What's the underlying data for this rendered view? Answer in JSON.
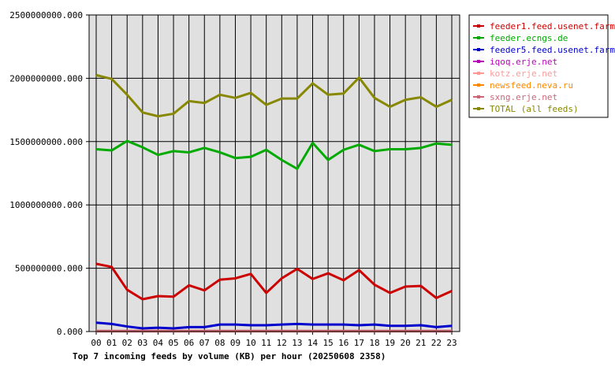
{
  "chart_data": {
    "type": "line",
    "title": "Top 7 incoming feeds by volume (KB) per hour (20250608 2358)",
    "xlabel": "",
    "ylabel": "",
    "ylim": [
      0,
      2500000000
    ],
    "y_ticks": [
      "0.000",
      "500000000.000",
      "1000000000.000",
      "1500000000.000",
      "2000000000.000",
      "2500000000.000"
    ],
    "y_tick_values": [
      0,
      500000000,
      1000000000,
      1500000000,
      2000000000,
      2500000000
    ],
    "categories": [
      "00",
      "01",
      "02",
      "03",
      "04",
      "05",
      "06",
      "07",
      "08",
      "09",
      "10",
      "11",
      "12",
      "13",
      "14",
      "15",
      "16",
      "17",
      "18",
      "19",
      "20",
      "21",
      "22",
      "23"
    ],
    "grid": true,
    "legend_position": "top-right",
    "series": [
      {
        "name": "feeder1.feed.usenet.farm",
        "color": "#cc0000",
        "values": [
          535000000,
          510000000,
          330000000,
          255000000,
          280000000,
          275000000,
          365000000,
          325000000,
          410000000,
          420000000,
          455000000,
          305000000,
          420000000,
          495000000,
          415000000,
          460000000,
          405000000,
          485000000,
          370000000,
          305000000,
          355000000,
          360000000,
          265000000,
          320000000
        ]
      },
      {
        "name": "feeder.ecngs.de",
        "color": "#00aa00",
        "values": [
          1440000000,
          1430000000,
          1505000000,
          1455000000,
          1395000000,
          1425000000,
          1415000000,
          1450000000,
          1415000000,
          1370000000,
          1380000000,
          1435000000,
          1355000000,
          1285000000,
          1490000000,
          1355000000,
          1435000000,
          1475000000,
          1425000000,
          1440000000,
          1440000000,
          1450000000,
          1485000000,
          1475000000
        ]
      },
      {
        "name": "feeder5.feed.usenet.farm",
        "color": "#0000cc",
        "values": [
          70000000,
          60000000,
          40000000,
          25000000,
          30000000,
          25000000,
          35000000,
          35000000,
          55000000,
          55000000,
          50000000,
          50000000,
          55000000,
          60000000,
          55000000,
          55000000,
          55000000,
          50000000,
          55000000,
          45000000,
          45000000,
          50000000,
          35000000,
          45000000
        ]
      },
      {
        "name": "iqoq.erje.net",
        "color": "#bb00bb",
        "values": [
          2000000,
          2000000,
          2000000,
          2000000,
          2000000,
          2000000,
          2000000,
          2000000,
          2000000,
          2000000,
          2000000,
          2000000,
          2000000,
          2000000,
          2000000,
          2000000,
          2000000,
          2000000,
          2000000,
          2000000,
          2000000,
          2000000,
          2000000,
          2000000
        ]
      },
      {
        "name": "kotz.erje.net",
        "color": "#ff9999",
        "values": [
          3000000,
          3000000,
          3000000,
          3000000,
          3000000,
          3000000,
          3000000,
          3000000,
          3000000,
          3000000,
          3000000,
          3000000,
          3000000,
          3000000,
          3000000,
          3000000,
          3000000,
          3000000,
          3000000,
          3000000,
          3000000,
          3000000,
          3000000,
          3000000
        ]
      },
      {
        "name": "newsfeed.neva.ru",
        "color": "#ff8800",
        "values": [
          4000000,
          4000000,
          4000000,
          4000000,
          4000000,
          4000000,
          4000000,
          4000000,
          4000000,
          4000000,
          4000000,
          4000000,
          4000000,
          4000000,
          4000000,
          4000000,
          4000000,
          4000000,
          4000000,
          4000000,
          4000000,
          4000000,
          4000000,
          4000000
        ]
      },
      {
        "name": "sxng.erje.net",
        "color": "#cc6677",
        "values": [
          5000000,
          5000000,
          5000000,
          5000000,
          5000000,
          5000000,
          5000000,
          5000000,
          5000000,
          5000000,
          5000000,
          5000000,
          5000000,
          5000000,
          5000000,
          5000000,
          5000000,
          5000000,
          5000000,
          5000000,
          5000000,
          5000000,
          5000000,
          5000000
        ]
      },
      {
        "name": "TOTAL (all feeds)",
        "color": "#888800",
        "values": [
          2025000000,
          1995000000,
          1870000000,
          1730000000,
          1700000000,
          1720000000,
          1820000000,
          1805000000,
          1870000000,
          1845000000,
          1885000000,
          1790000000,
          1840000000,
          1840000000,
          1960000000,
          1870000000,
          1880000000,
          2005000000,
          1845000000,
          1775000000,
          1830000000,
          1850000000,
          1775000000,
          1830000000
        ]
      }
    ]
  }
}
